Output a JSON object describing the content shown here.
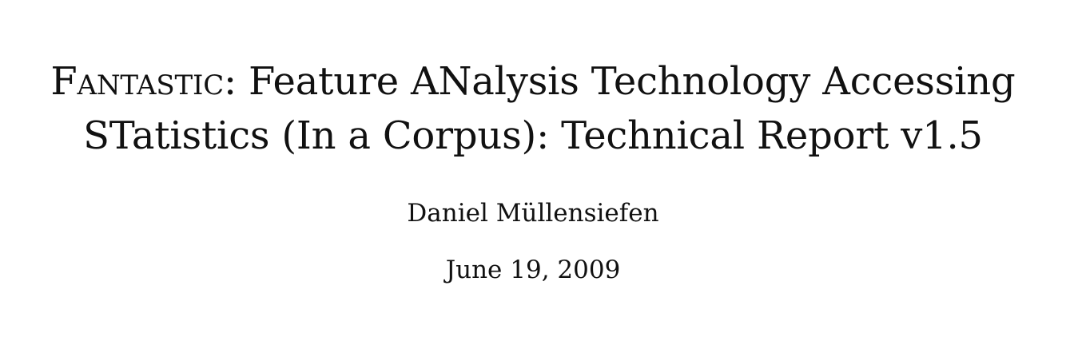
{
  "document": {
    "title": {
      "line1_smallcaps": "Fantastic",
      "line1_rest": ": Feature ANalysis Technology Accessing",
      "line2": "STatistics (In a Corpus): Technical Report v1.5"
    },
    "author": "Daniel Müllensiefen",
    "date": "June 19, 2009"
  }
}
